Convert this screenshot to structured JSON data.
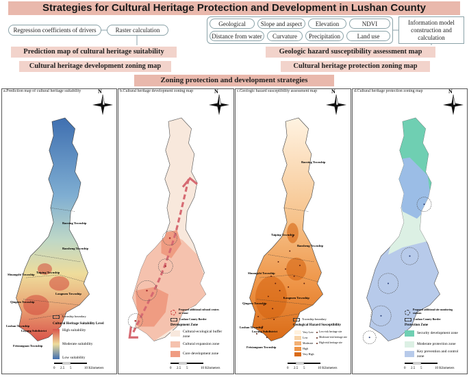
{
  "title": "Strategies for Cultural Heritage Protection and Development in Lushan County",
  "drivers": {
    "left_pills": [
      "Regression coefficients of drivers",
      "Raster calculation"
    ],
    "right_pills": [
      "Geological hazard",
      "Slope and aspect",
      "Elevation",
      "NDVI",
      "Distance from water",
      "Curvature",
      "Precipitation",
      "Land use"
    ],
    "info_box": "Information model construction and calculation"
  },
  "flow": {
    "pred_map": "Prediction map of cultural heritage suitability",
    "hazard_map": "Geologic hazard susceptibility assessment map",
    "dev_zoning": "Cultural heritage development zoning map",
    "prot_zoning": "Cultural heritage protection zoning map",
    "final": "Zoning protection and development strategies"
  },
  "colors": {
    "banner": "#e9b8ac",
    "bar": "#f2d3cb"
  },
  "scale": {
    "ticks": [
      "0",
      "2.5",
      "5",
      "10 Kilometers"
    ]
  },
  "north": "N",
  "panels": {
    "a": {
      "title": "a.Prediction map of cultural heritage suitability",
      "townships": [
        "Baoxing Township",
        "Taiping Township",
        "Baosheng Township",
        "Shuangshi Township",
        "Longmen Township",
        "Qingren Township",
        "Lushan Township",
        "Luyang Subdistrict",
        "Feixianguan Township"
      ],
      "legend_title": "Cultural Heritage Suitability Level",
      "legend_items": [
        "High suitability",
        "Moderate suitability",
        "Low suitability"
      ],
      "boundary": "Township boundary"
    },
    "b": {
      "title": "b.Cultural heritage development zoning map",
      "proposed": "Proposed additional cultural centers or venue",
      "border": "Lushan County Border",
      "legend_title": "Development Zone",
      "legend_items": [
        "Cultural-ecological buffer zone",
        "Cultural expansion zone",
        "Core development zone"
      ]
    },
    "c": {
      "title": "c.Geologic hazard susceptibility assessment map",
      "townships": [
        "Baoxing Township",
        "Taiping Township",
        "Baosheng Township",
        "Shuangshi Township",
        "Longmen Township",
        "Qingren Township",
        "Lushan Township",
        "Luyang Subdistrict",
        "Feixianguan Township"
      ],
      "boundary": "Township boundary",
      "legend_title": "Geological Hazard Susceptibility",
      "legend_levels": [
        "Very Low",
        "Low",
        "Moderate",
        "High",
        "Very High"
      ],
      "legend_points": [
        "Low-risk heritage site",
        "Moderate-risk heritage site",
        "High-risk heritage site"
      ]
    },
    "d": {
      "title": "d.Cultural heritage protection zoning map",
      "proposed": "Proposed additional site monitoring stations",
      "border": "Lushan County Border",
      "legend_title": "Protection Zone",
      "legend_items": [
        "Security development zone",
        "Moderate protection zone",
        "Key prevention and control zone"
      ]
    }
  }
}
